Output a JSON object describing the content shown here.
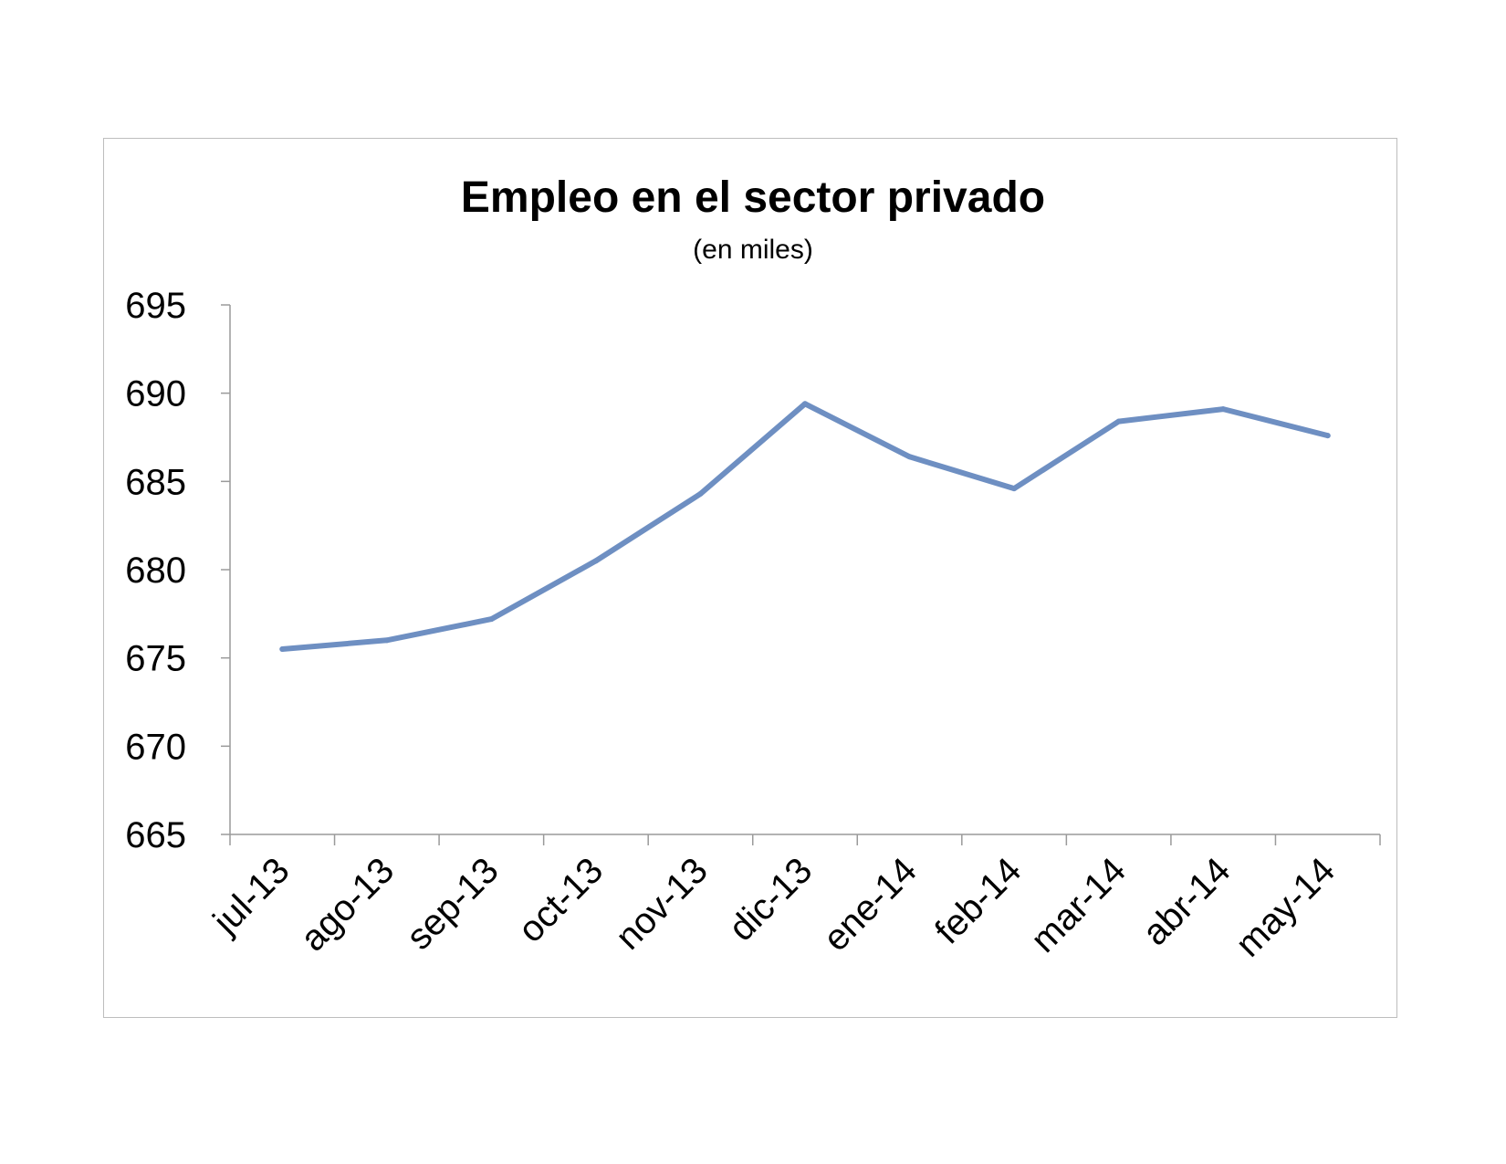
{
  "chart_data": {
    "type": "line",
    "title": "Empleo en el sector privado",
    "subtitle": "(en miles)",
    "xlabel": "",
    "ylabel": "",
    "categories": [
      "jul-13",
      "ago-13",
      "sep-13",
      "oct-13",
      "nov-13",
      "dic-13",
      "ene-14",
      "feb-14",
      "mar-14",
      "abr-14",
      "may-14"
    ],
    "series": [
      {
        "values": [
          675.5,
          676.0,
          677.2,
          680.5,
          684.3,
          689.4,
          686.4,
          684.6,
          688.4,
          689.1,
          687.6
        ],
        "color": "#6e8fc2"
      }
    ],
    "ylim": [
      665,
      695
    ],
    "yticks": [
      665,
      670,
      675,
      680,
      685,
      690,
      695
    ],
    "grid": false,
    "legend": "none"
  }
}
